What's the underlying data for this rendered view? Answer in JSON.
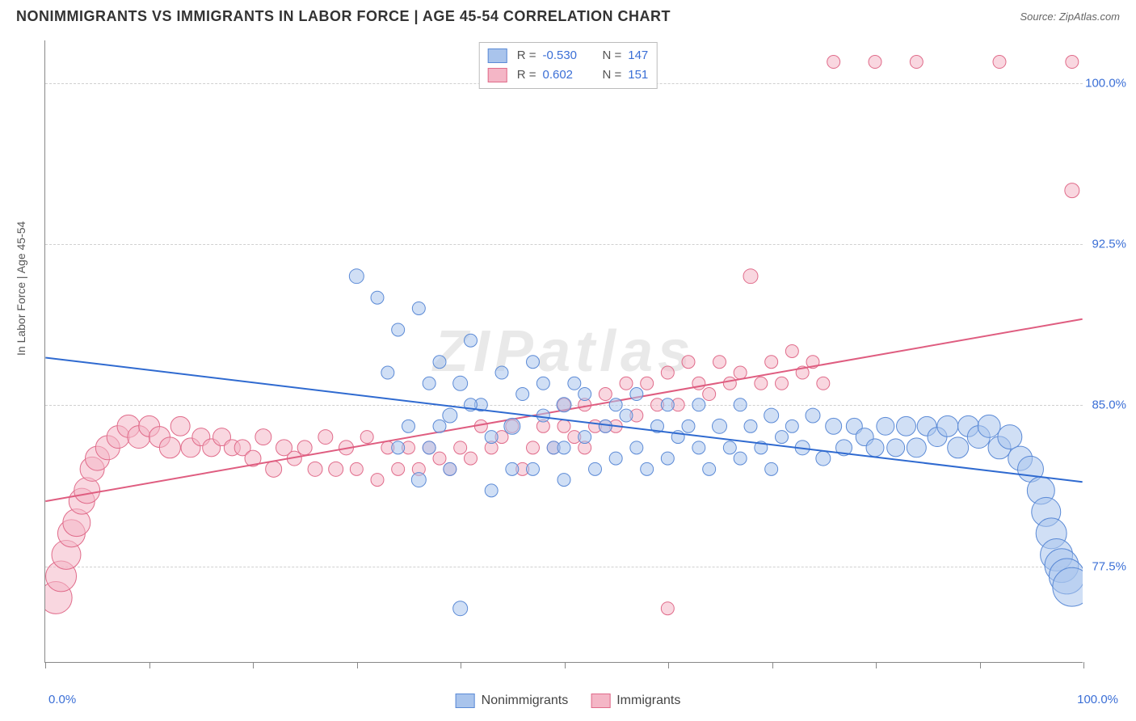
{
  "header": {
    "title": "NONIMMIGRANTS VS IMMIGRANTS IN LABOR FORCE | AGE 45-54 CORRELATION CHART",
    "source": "Source: ZipAtlas.com"
  },
  "watermark": "ZIPatlas",
  "chart": {
    "type": "scatter",
    "ylabel": "In Labor Force | Age 45-54",
    "xlim": [
      0,
      100
    ],
    "ylim": [
      73,
      102
    ],
    "yticks": [
      77.5,
      85.0,
      92.5,
      100.0
    ],
    "ytick_labels": [
      "77.5%",
      "85.0%",
      "92.5%",
      "100.0%"
    ],
    "xtick_major_count": 11,
    "xtick_label_left": "0.0%",
    "xtick_label_right": "100.0%",
    "grid_color": "#d0d0d0",
    "background_color": "#ffffff",
    "axis_color": "#888888",
    "tick_label_color": "#3b6fd6",
    "series": {
      "nonimmigrants": {
        "label": "Nonimmigrants",
        "fill": "#a9c4ec",
        "stroke": "#5b8ad6",
        "fill_opacity": 0.55,
        "trend": {
          "x1": 0,
          "y1": 87.2,
          "x2": 100,
          "y2": 81.4,
          "color": "#2f6ad0",
          "width": 2
        },
        "R": "-0.530",
        "N": "147",
        "points": [
          [
            30,
            91,
            9
          ],
          [
            32,
            90,
            8
          ],
          [
            33,
            86.5,
            8
          ],
          [
            34,
            88.5,
            8
          ],
          [
            36,
            81.5,
            9
          ],
          [
            36,
            89.5,
            8
          ],
          [
            37,
            83,
            8
          ],
          [
            38,
            87,
            8
          ],
          [
            39,
            84.5,
            9
          ],
          [
            40,
            86,
            9
          ],
          [
            40,
            75.5,
            9
          ],
          [
            41,
            88,
            8
          ],
          [
            42,
            85,
            8
          ],
          [
            43,
            81,
            8
          ],
          [
            44,
            86.5,
            8
          ],
          [
            45,
            84,
            10
          ],
          [
            46,
            85.5,
            8
          ],
          [
            47,
            82,
            8
          ],
          [
            47,
            87,
            8
          ],
          [
            48,
            84.5,
            8
          ],
          [
            49,
            83,
            8
          ],
          [
            50,
            85,
            9
          ],
          [
            50,
            81.5,
            8
          ],
          [
            51,
            86,
            8
          ],
          [
            52,
            83.5,
            8
          ],
          [
            52,
            85.5,
            8
          ],
          [
            53,
            82,
            8
          ],
          [
            54,
            84,
            8
          ],
          [
            55,
            85,
            8
          ],
          [
            55,
            82.5,
            8
          ],
          [
            56,
            84.5,
            8
          ],
          [
            57,
            83,
            8
          ],
          [
            57,
            85.5,
            8
          ],
          [
            58,
            82,
            8
          ],
          [
            59,
            84,
            8
          ],
          [
            60,
            85,
            8
          ],
          [
            60,
            82.5,
            8
          ],
          [
            61,
            83.5,
            8
          ],
          [
            62,
            84,
            8
          ],
          [
            63,
            83,
            8
          ],
          [
            63,
            85,
            8
          ],
          [
            64,
            82,
            8
          ],
          [
            65,
            84,
            9
          ],
          [
            66,
            83,
            8
          ],
          [
            67,
            85,
            8
          ],
          [
            67,
            82.5,
            8
          ],
          [
            68,
            84,
            8
          ],
          [
            69,
            83,
            8
          ],
          [
            70,
            84.5,
            9
          ],
          [
            70,
            82,
            8
          ],
          [
            71,
            83.5,
            8
          ],
          [
            72,
            84,
            8
          ],
          [
            73,
            83,
            9
          ],
          [
            74,
            84.5,
            9
          ],
          [
            75,
            82.5,
            9
          ],
          [
            76,
            84,
            10
          ],
          [
            77,
            83,
            10
          ],
          [
            78,
            84,
            10
          ],
          [
            79,
            83.5,
            11
          ],
          [
            80,
            83,
            11
          ],
          [
            81,
            84,
            11
          ],
          [
            82,
            83,
            11
          ],
          [
            83,
            84,
            12
          ],
          [
            84,
            83,
            12
          ],
          [
            85,
            84,
            12
          ],
          [
            86,
            83.5,
            12
          ],
          [
            87,
            84,
            13
          ],
          [
            88,
            83,
            13
          ],
          [
            89,
            84,
            13
          ],
          [
            90,
            83.5,
            14
          ],
          [
            91,
            84,
            14
          ],
          [
            92,
            83,
            14
          ],
          [
            93,
            83.5,
            15
          ],
          [
            94,
            82.5,
            15
          ],
          [
            95,
            82,
            16
          ],
          [
            96,
            81,
            17
          ],
          [
            96.5,
            80,
            18
          ],
          [
            97,
            79,
            19
          ],
          [
            97.5,
            78,
            20
          ],
          [
            98,
            77.5,
            21
          ],
          [
            98.5,
            77,
            22
          ],
          [
            99,
            76.5,
            24
          ],
          [
            35,
            84,
            8
          ],
          [
            37,
            86,
            8
          ],
          [
            39,
            82,
            8
          ],
          [
            41,
            85,
            8
          ],
          [
            43,
            83.5,
            8
          ],
          [
            45,
            82,
            8
          ],
          [
            48,
            86,
            8
          ],
          [
            50,
            83,
            8
          ],
          [
            34,
            83,
            8
          ],
          [
            38,
            84,
            8
          ]
        ]
      },
      "immigrants": {
        "label": "Immigrants",
        "fill": "#f4b6c6",
        "stroke": "#e06b8a",
        "fill_opacity": 0.55,
        "trend": {
          "x1": 0,
          "y1": 80.5,
          "x2": 100,
          "y2": 89.0,
          "color": "#df5d80",
          "width": 2
        },
        "R": "0.602",
        "N": "151",
        "points": [
          [
            1,
            76,
            20
          ],
          [
            1.5,
            77,
            19
          ],
          [
            2,
            78,
            18
          ],
          [
            2.5,
            79,
            17
          ],
          [
            3,
            79.5,
            17
          ],
          [
            3.5,
            80.5,
            16
          ],
          [
            4,
            81,
            16
          ],
          [
            4.5,
            82,
            15
          ],
          [
            5,
            82.5,
            15
          ],
          [
            6,
            83,
            15
          ],
          [
            7,
            83.5,
            14
          ],
          [
            8,
            84,
            14
          ],
          [
            9,
            83.5,
            14
          ],
          [
            10,
            84,
            13
          ],
          [
            11,
            83.5,
            13
          ],
          [
            12,
            83,
            13
          ],
          [
            13,
            84,
            12
          ],
          [
            14,
            83,
            12
          ],
          [
            15,
            83.5,
            11
          ],
          [
            16,
            83,
            11
          ],
          [
            17,
            83.5,
            11
          ],
          [
            18,
            83,
            10
          ],
          [
            19,
            83,
            10
          ],
          [
            20,
            82.5,
            10
          ],
          [
            21,
            83.5,
            10
          ],
          [
            22,
            82,
            10
          ],
          [
            23,
            83,
            10
          ],
          [
            24,
            82.5,
            9
          ],
          [
            25,
            83,
            9
          ],
          [
            26,
            82,
            9
          ],
          [
            27,
            83.5,
            9
          ],
          [
            28,
            82,
            9
          ],
          [
            29,
            83,
            9
          ],
          [
            30,
            82,
            8
          ],
          [
            31,
            83.5,
            8
          ],
          [
            32,
            81.5,
            8
          ],
          [
            33,
            83,
            8
          ],
          [
            34,
            82,
            8
          ],
          [
            35,
            83,
            8
          ],
          [
            36,
            82,
            8
          ],
          [
            37,
            83,
            8
          ],
          [
            38,
            82.5,
            8
          ],
          [
            39,
            82,
            8
          ],
          [
            40,
            83,
            8
          ],
          [
            41,
            82.5,
            8
          ],
          [
            42,
            84,
            8
          ],
          [
            43,
            83,
            8
          ],
          [
            44,
            83.5,
            8
          ],
          [
            45,
            84,
            8
          ],
          [
            46,
            82,
            8
          ],
          [
            47,
            83,
            8
          ],
          [
            48,
            84,
            8
          ],
          [
            49,
            83,
            8
          ],
          [
            50,
            84,
            8
          ],
          [
            51,
            83.5,
            8
          ],
          [
            52,
            85,
            8
          ],
          [
            53,
            84,
            8
          ],
          [
            54,
            85.5,
            8
          ],
          [
            55,
            84,
            8
          ],
          [
            56,
            86,
            8
          ],
          [
            57,
            84.5,
            8
          ],
          [
            58,
            86,
            8
          ],
          [
            59,
            85,
            8
          ],
          [
            60,
            86.5,
            8
          ],
          [
            61,
            85,
            8
          ],
          [
            62,
            87,
            8
          ],
          [
            60,
            75.5,
            8
          ],
          [
            63,
            86,
            8
          ],
          [
            64,
            85.5,
            8
          ],
          [
            65,
            87,
            8
          ],
          [
            66,
            86,
            8
          ],
          [
            67,
            86.5,
            8
          ],
          [
            68,
            91,
            9
          ],
          [
            69,
            86,
            8
          ],
          [
            70,
            87,
            8
          ],
          [
            71,
            86,
            8
          ],
          [
            72,
            87.5,
            8
          ],
          [
            73,
            86.5,
            8
          ],
          [
            74,
            87,
            8
          ],
          [
            75,
            86,
            8
          ],
          [
            76,
            101,
            8
          ],
          [
            80,
            101,
            8
          ],
          [
            84,
            101,
            8
          ],
          [
            92,
            101,
            8
          ],
          [
            99,
            95,
            9
          ],
          [
            99,
            101,
            8
          ],
          [
            50,
            85,
            8
          ],
          [
            52,
            83,
            8
          ],
          [
            54,
            84,
            8
          ]
        ]
      }
    }
  },
  "legend_top": {
    "rows": [
      {
        "sw_fill": "#a9c4ec",
        "sw_stroke": "#5b8ad6",
        "R": "-0.530",
        "N": "147"
      },
      {
        "sw_fill": "#f4b6c6",
        "sw_stroke": "#e06b8a",
        "R": "0.602",
        "N": "151"
      }
    ],
    "R_prefix": "R =",
    "N_prefix": "N ="
  },
  "legend_bottom": {
    "items": [
      {
        "sw_fill": "#a9c4ec",
        "sw_stroke": "#5b8ad6",
        "label": "Nonimmigrants"
      },
      {
        "sw_fill": "#f4b6c6",
        "sw_stroke": "#e06b8a",
        "label": "Immigrants"
      }
    ]
  }
}
